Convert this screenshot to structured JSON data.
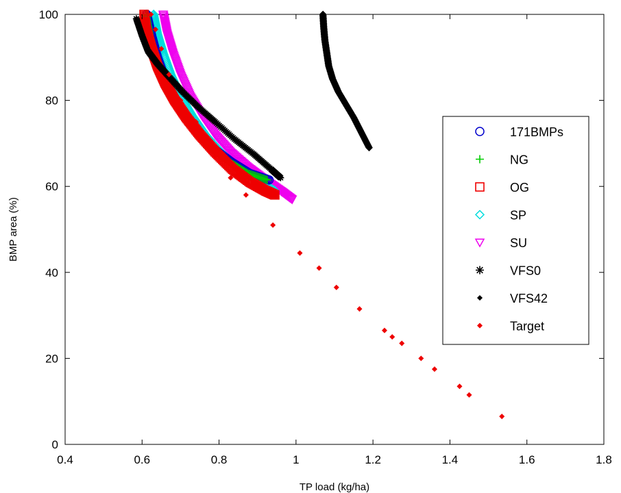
{
  "chart_data": {
    "type": "scatter",
    "title": "",
    "xlabel": "TP load (kg/ha)",
    "ylabel": "BMP area (%)",
    "xlim": [
      0.4,
      1.8
    ],
    "ylim": [
      0,
      100
    ],
    "xticks": [
      0.4,
      0.6,
      0.8,
      1,
      1.2,
      1.4,
      1.6,
      1.8
    ],
    "xtick_labels": [
      "0.4",
      "0.6",
      "0.8",
      "1",
      "1.2",
      "1.4",
      "1.6",
      "1.8"
    ],
    "yticks": [
      0,
      20,
      40,
      60,
      80,
      100
    ],
    "ytick_labels": [
      "0",
      "20",
      "40",
      "60",
      "80",
      "100"
    ],
    "grid": false,
    "legend_position": "right",
    "series": [
      {
        "name": "171BMPs",
        "marker": "circle",
        "color": "#0000cc",
        "x": [
          0.612,
          0.625,
          0.64,
          0.66,
          0.685,
          0.715,
          0.75,
          0.79,
          0.835,
          0.88,
          0.93
        ],
        "y": [
          100,
          95,
          90,
          85,
          80,
          76,
          72,
          68.5,
          65.5,
          63,
          61.5
        ]
      },
      {
        "name": "NG",
        "marker": "plus",
        "color": "#00cc00",
        "x": [
          0.61,
          0.62,
          0.635,
          0.655,
          0.68,
          0.71,
          0.745,
          0.785,
          0.83,
          0.875,
          0.925
        ],
        "y": [
          100,
          95,
          90,
          85,
          80,
          76,
          72,
          68.5,
          65.5,
          63,
          61.5
        ]
      },
      {
        "name": "OG",
        "marker": "square",
        "color": "#ee0000",
        "x": [
          0.605,
          0.612,
          0.625,
          0.64,
          0.66,
          0.685,
          0.715,
          0.75,
          0.79,
          0.835,
          0.88,
          0.92,
          0.945
        ],
        "y": [
          100,
          96,
          92,
          88,
          84,
          80,
          76,
          72,
          68,
          64,
          61,
          59,
          58
        ]
      },
      {
        "name": "SP",
        "marker": "diamond",
        "color": "#00dddd",
        "x": [
          0.63,
          0.64,
          0.655,
          0.675,
          0.7,
          0.73,
          0.765,
          0.805,
          0.85,
          0.9,
          0.945
        ],
        "y": [
          100,
          95.5,
          91,
          86,
          81,
          76.5,
          72,
          68,
          64.5,
          61.5,
          59
        ]
      },
      {
        "name": "SU",
        "marker": "triangle-down",
        "color": "#ee00ee",
        "x": [
          0.655,
          0.665,
          0.68,
          0.7,
          0.725,
          0.755,
          0.79,
          0.83,
          0.875,
          0.92,
          0.96,
          0.99
        ],
        "y": [
          100,
          95.5,
          91,
          86,
          81,
          76.5,
          72,
          68,
          64.5,
          61.5,
          59,
          57
        ]
      },
      {
        "name": "VFS0",
        "marker": "asterisk",
        "color": "#000000",
        "x": [
          0.585,
          0.6,
          0.615,
          0.64,
          0.67,
          0.705,
          0.745,
          0.79,
          0.84,
          0.89,
          0.935,
          0.96
        ],
        "y": [
          99,
          95,
          91.5,
          88.5,
          85.5,
          82,
          78.5,
          75,
          71,
          67.5,
          64,
          62
        ]
      },
      {
        "name": "VFS42",
        "marker": "dot",
        "color": "#000000",
        "x": [
          1.07,
          1.072,
          1.075,
          1.08,
          1.085,
          1.095,
          1.11,
          1.13,
          1.15,
          1.17,
          1.19
        ],
        "y": [
          100,
          97,
          94,
          91,
          88,
          85,
          82,
          79,
          76,
          72.5,
          69
        ]
      },
      {
        "name": "Target",
        "marker": "dot",
        "color": "#ee0000",
        "x": [
          0.623,
          0.635,
          0.65,
          0.67,
          0.7,
          0.74,
          0.76,
          0.79,
          0.83,
          0.87,
          0.94,
          1.01,
          1.06,
          1.105,
          1.165,
          1.23,
          1.25,
          1.275,
          1.325,
          1.36,
          1.425,
          1.45,
          1.535
        ],
        "y": [
          100,
          96.5,
          92,
          86,
          80,
          75,
          71,
          67,
          62,
          58,
          51,
          44.5,
          41,
          36.5,
          31.5,
          26.5,
          25,
          23.5,
          20,
          17.5,
          13.5,
          11.5,
          6.5
        ]
      }
    ]
  }
}
